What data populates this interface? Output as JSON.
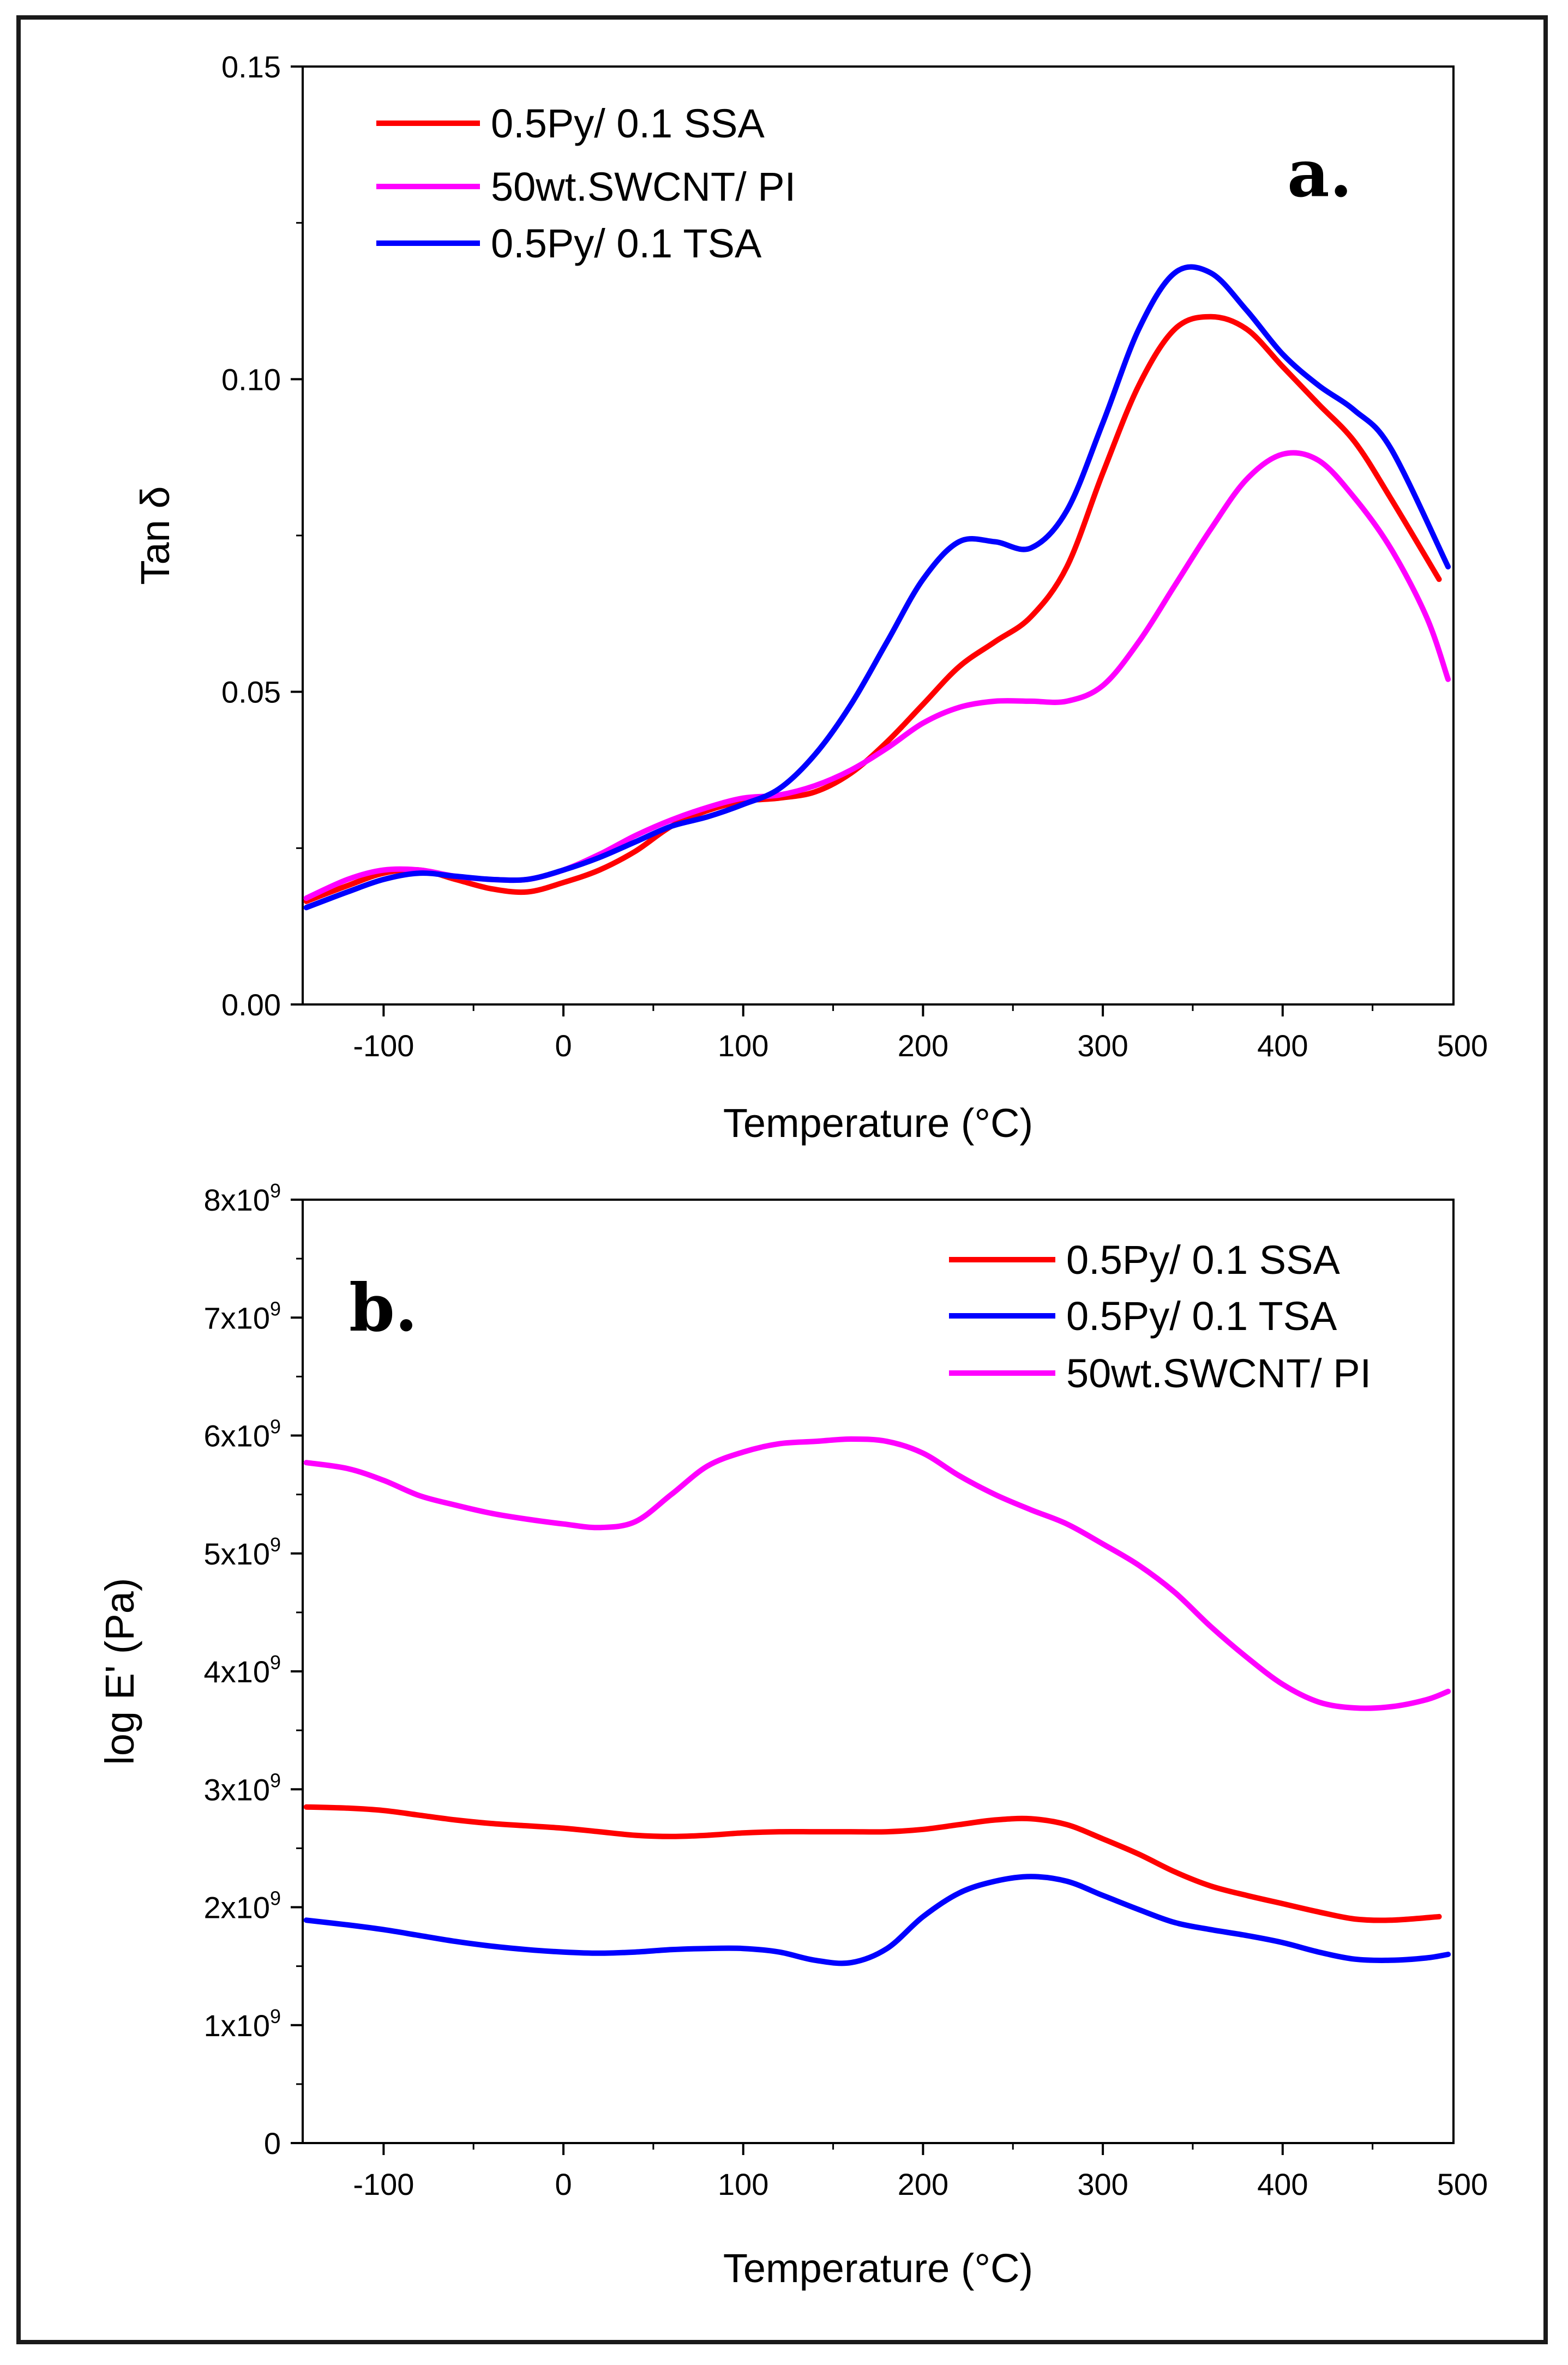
{
  "colors": {
    "ssa": "#ff0000",
    "swcnt": "#ff00ff",
    "tsa": "#0000ff",
    "axis": "#000000"
  },
  "chart_data": [
    {
      "id": "a",
      "type": "line",
      "panel_label": "a.",
      "xlabel": "Temperature (°C)",
      "ylabel": "Tan δ",
      "xlim": [
        -145,
        495
      ],
      "ylim": [
        0,
        0.15
      ],
      "x_ticks": [
        -100,
        0,
        100,
        200,
        300,
        400,
        500
      ],
      "x_tick_labels": [
        "-100",
        "0",
        "100",
        "200",
        "300",
        "400",
        "500"
      ],
      "y_ticks": [
        0,
        0.05,
        0.1,
        0.15
      ],
      "y_tick_labels": [
        "0.00",
        "0.05",
        "0.10",
        "0.15"
      ],
      "legend_position": "top-left",
      "legend": [
        "0.5Py/ 0.1 SSA",
        "50wt.SWCNT/ PI",
        "0.5Py/ 0.1 TSA"
      ],
      "series": [
        {
          "name": "0.5Py/ 0.1 SSA",
          "color_key": "ssa",
          "x": [
            -143,
            -120,
            -100,
            -80,
            -60,
            -40,
            -20,
            0,
            20,
            40,
            60,
            80,
            100,
            120,
            140,
            160,
            180,
            200,
            220,
            240,
            260,
            280,
            300,
            320,
            340,
            360,
            380,
            400,
            420,
            440,
            460,
            487
          ],
          "y": [
            0.0165,
            0.019,
            0.021,
            0.0215,
            0.02,
            0.0185,
            0.018,
            0.0195,
            0.0215,
            0.0245,
            0.0285,
            0.031,
            0.0325,
            0.033,
            0.034,
            0.037,
            0.042,
            0.048,
            0.054,
            0.058,
            0.062,
            0.07,
            0.085,
            0.099,
            0.108,
            0.11,
            0.108,
            0.102,
            0.096,
            0.09,
            0.081,
            0.068
          ]
        },
        {
          "name": "50wt.SWCNT/ PI",
          "color_key": "swcnt",
          "x": [
            -143,
            -120,
            -100,
            -80,
            -60,
            -40,
            -20,
            0,
            20,
            40,
            60,
            80,
            100,
            120,
            140,
            160,
            180,
            200,
            220,
            240,
            260,
            280,
            300,
            320,
            340,
            360,
            380,
            400,
            420,
            440,
            460,
            480,
            492
          ],
          "y": [
            0.017,
            0.02,
            0.0215,
            0.0215,
            0.0205,
            0.02,
            0.02,
            0.0215,
            0.024,
            0.027,
            0.0295,
            0.0315,
            0.033,
            0.0335,
            0.035,
            0.0375,
            0.041,
            0.045,
            0.0475,
            0.0485,
            0.0485,
            0.0485,
            0.051,
            0.058,
            0.067,
            0.076,
            0.084,
            0.088,
            0.087,
            0.081,
            0.073,
            0.062,
            0.052
          ]
        },
        {
          "name": "0.5Py/ 0.1 TSA",
          "color_key": "tsa",
          "x": [
            -143,
            -120,
            -100,
            -80,
            -60,
            -40,
            -20,
            0,
            20,
            40,
            60,
            80,
            100,
            120,
            140,
            160,
            180,
            200,
            220,
            240,
            260,
            280,
            300,
            320,
            340,
            360,
            380,
            400,
            420,
            440,
            460,
            492
          ],
          "y": [
            0.0155,
            0.018,
            0.02,
            0.021,
            0.0205,
            0.02,
            0.02,
            0.0215,
            0.0235,
            0.026,
            0.0285,
            0.03,
            0.032,
            0.0345,
            0.04,
            0.048,
            0.058,
            0.068,
            0.074,
            0.074,
            0.073,
            0.079,
            0.093,
            0.108,
            0.117,
            0.117,
            0.111,
            0.104,
            0.099,
            0.095,
            0.089,
            0.07
          ]
        }
      ]
    },
    {
      "id": "b",
      "type": "line",
      "panel_label": "b.",
      "xlabel": "Temperature (°C)",
      "ylabel": "log E' (Pa)",
      "xlim": [
        -145,
        495
      ],
      "ylim": [
        0,
        8000000000
      ],
      "x_ticks": [
        -100,
        0,
        100,
        200,
        300,
        400,
        500
      ],
      "x_tick_labels": [
        "-100",
        "0",
        "100",
        "200",
        "300",
        "400",
        "500"
      ],
      "y_ticks": [
        0,
        1000000000,
        2000000000,
        3000000000,
        4000000000,
        5000000000,
        6000000000,
        7000000000,
        8000000000
      ],
      "y_tick_labels": [
        "0",
        "1x10",
        "2x10",
        "3x10",
        "4x10",
        "5x10",
        "6x10",
        "7x10",
        "8x10"
      ],
      "y_tick_exponents": [
        "",
        "9",
        "9",
        "9",
        "9",
        "9",
        "9",
        "9",
        "9"
      ],
      "legend_position": "top-right",
      "legend": [
        "0.5Py/ 0.1 SSA",
        "0.5Py/ 0.1 TSA",
        "50wt.SWCNT/ PI"
      ],
      "series": [
        {
          "name": "0.5Py/ 0.1 SSA",
          "color_key": "ssa",
          "x": [
            -143,
            -120,
            -100,
            -80,
            -60,
            -40,
            -20,
            0,
            20,
            40,
            60,
            80,
            100,
            120,
            140,
            160,
            180,
            200,
            220,
            240,
            260,
            280,
            300,
            320,
            340,
            360,
            380,
            400,
            420,
            440,
            460,
            487
          ],
          "y": [
            2850000000.0,
            2840000000.0,
            2820000000.0,
            2780000000.0,
            2740000000.0,
            2710000000.0,
            2690000000.0,
            2670000000.0,
            2640000000.0,
            2610000000.0,
            2600000000.0,
            2610000000.0,
            2630000000.0,
            2640000000.0,
            2640000000.0,
            2640000000.0,
            2640000000.0,
            2660000000.0,
            2700000000.0,
            2740000000.0,
            2750000000.0,
            2700000000.0,
            2580000000.0,
            2450000000.0,
            2300000000.0,
            2180000000.0,
            2100000000.0,
            2030000000.0,
            1960000000.0,
            1900000000.0,
            1890000000.0,
            1920000000.0
          ]
        },
        {
          "name": "0.5Py/ 0.1 TSA",
          "color_key": "tsa",
          "x": [
            -143,
            -120,
            -100,
            -80,
            -60,
            -40,
            -20,
            0,
            20,
            40,
            60,
            80,
            100,
            120,
            140,
            160,
            180,
            200,
            220,
            240,
            260,
            280,
            300,
            320,
            340,
            360,
            380,
            400,
            420,
            440,
            460,
            480,
            492
          ],
          "y": [
            1890000000.0,
            1850000000.0,
            1810000000.0,
            1760000000.0,
            1710000000.0,
            1670000000.0,
            1640000000.0,
            1620000000.0,
            1610000000.0,
            1620000000.0,
            1640000000.0,
            1650000000.0,
            1650000000.0,
            1620000000.0,
            1550000000.0,
            1530000000.0,
            1650000000.0,
            1920000000.0,
            2120000000.0,
            2220000000.0,
            2260000000.0,
            2220000000.0,
            2100000000.0,
            1980000000.0,
            1870000000.0,
            1810000000.0,
            1760000000.0,
            1700000000.0,
            1620000000.0,
            1560000000.0,
            1550000000.0,
            1570000000.0,
            1600000000.0
          ]
        },
        {
          "name": "50wt.SWCNT/ PI",
          "color_key": "swcnt",
          "x": [
            -143,
            -120,
            -100,
            -80,
            -60,
            -40,
            -20,
            0,
            20,
            40,
            60,
            80,
            100,
            120,
            140,
            160,
            180,
            200,
            220,
            240,
            260,
            280,
            300,
            320,
            340,
            360,
            380,
            400,
            420,
            440,
            460,
            480,
            492
          ],
          "y": [
            5770000000.0,
            5720000000.0,
            5620000000.0,
            5490000000.0,
            5410000000.0,
            5340000000.0,
            5290000000.0,
            5250000000.0,
            5220000000.0,
            5270000000.0,
            5500000000.0,
            5740000000.0,
            5860000000.0,
            5930000000.0,
            5950000000.0,
            5970000000.0,
            5950000000.0,
            5850000000.0,
            5660000000.0,
            5500000000.0,
            5370000000.0,
            5250000000.0,
            5080000000.0,
            4900000000.0,
            4670000000.0,
            4380000000.0,
            4120000000.0,
            3890000000.0,
            3740000000.0,
            3690000000.0,
            3700000000.0,
            3760000000.0,
            3830000000.0
          ]
        }
      ]
    }
  ]
}
